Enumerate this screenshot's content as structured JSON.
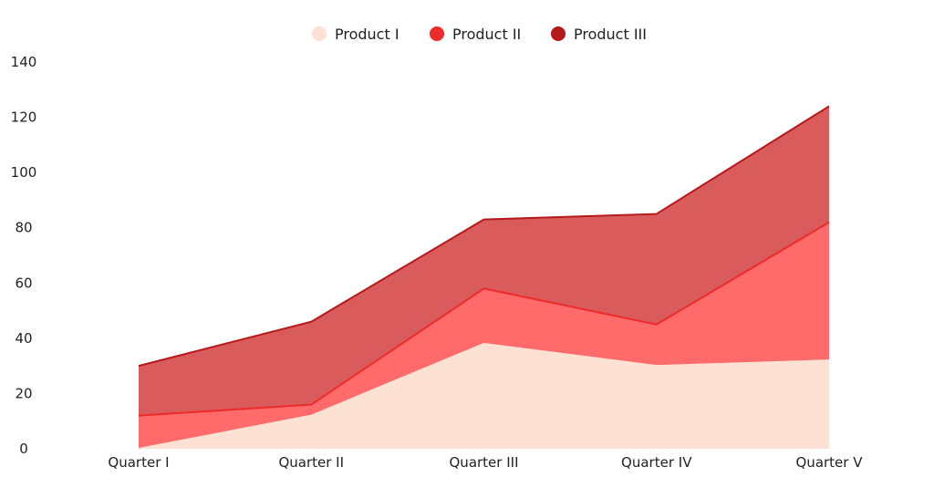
{
  "chart_data": {
    "type": "area",
    "stacked": true,
    "categories": [
      "Quarter I",
      "Quarter II",
      "Quarter III",
      "Quarter IV",
      "Quarter V"
    ],
    "series": [
      {
        "name": "Product I",
        "values": [
          0,
          12,
          38,
          30,
          32
        ],
        "color": "#fde1d3",
        "line_color": "#fde1d3"
      },
      {
        "name": "Product II",
        "values": [
          12,
          4,
          20,
          15,
          50
        ],
        "color": "#ff6b6b",
        "line_color": "#ee2b2b"
      },
      {
        "name": "Product III",
        "values": [
          18,
          30,
          25,
          40,
          42
        ],
        "color": "#d95b5b",
        "line_color": "#b51919"
      }
    ],
    "ylim": [
      0,
      140
    ],
    "yticks": [
      "0",
      "20",
      "40",
      "60",
      "80",
      "100",
      "120",
      "140"
    ],
    "ytick_values": [
      0,
      20,
      40,
      60,
      80,
      100,
      120,
      140
    ],
    "legend_position": "top-center",
    "grid": false
  }
}
